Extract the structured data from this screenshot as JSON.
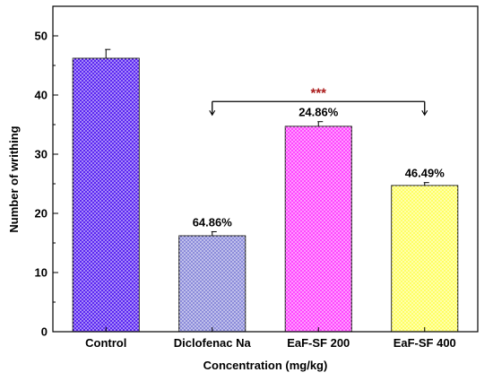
{
  "chart_data": {
    "type": "bar",
    "title": "",
    "xlabel": "Concentration (mg/kg)",
    "ylabel": "Number of writhing",
    "ylim": [
      0,
      55
    ],
    "yticks": [
      0,
      10,
      20,
      30,
      40,
      50
    ],
    "grid": false,
    "categories": [
      "Control",
      "Diclofenac Na",
      "EaF-SF 200",
      "EaF-SF 400"
    ],
    "values": [
      46.2,
      16.2,
      34.7,
      24.7
    ],
    "errors": [
      1.5,
      0.7,
      0.8,
      0.5
    ],
    "data_labels": [
      "",
      "64.86%",
      "24.86%",
      "46.49%"
    ],
    "bar_colors": [
      "#4a10f0",
      "#7f7fd6",
      "#ff33ff",
      "#ffff55"
    ],
    "significance": {
      "label": "***",
      "color": "#aa1a1a",
      "from_category": "Diclofenac Na",
      "to_category": "EaF-SF 400",
      "y": 38.9
    }
  }
}
